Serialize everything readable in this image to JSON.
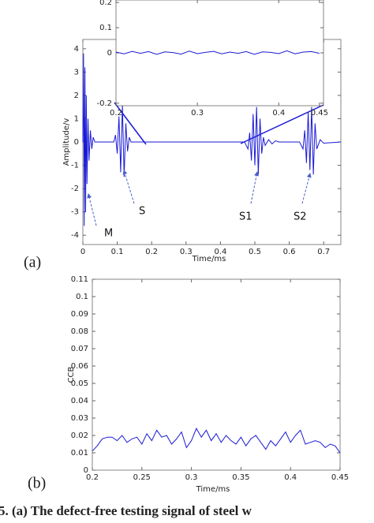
{
  "chart_data": [
    {
      "type": "line",
      "panel_label": "(a)",
      "x_label": "Time/ms",
      "y_label": "Amplitude/v",
      "color": "#1a1ad6",
      "xlim": [
        0,
        0.75
      ],
      "ylim": [
        -4.4,
        4.4
      ],
      "xticks": [
        0,
        0.1,
        0.2,
        0.3,
        0.4,
        0.5,
        0.6,
        0.7
      ],
      "yticks": [
        -4,
        -3,
        -2,
        -1,
        0,
        1,
        2,
        3,
        4
      ],
      "annotations": [
        "M",
        "S",
        "S1",
        "S2"
      ],
      "x": [
        0,
        0.002,
        0.004,
        0.006,
        0.008,
        0.01,
        0.012,
        0.015,
        0.018,
        0.022,
        0.026,
        0.03,
        0.035,
        0.09,
        0.095,
        0.1,
        0.105,
        0.11,
        0.115,
        0.12,
        0.125,
        0.13,
        0.135,
        0.14,
        0.47,
        0.48,
        0.485,
        0.49,
        0.495,
        0.5,
        0.505,
        0.51,
        0.515,
        0.52,
        0.525,
        0.53,
        0.54,
        0.55,
        0.56,
        0.57,
        0.63,
        0.64,
        0.645,
        0.65,
        0.655,
        0.66,
        0.665,
        0.67,
        0.675,
        0.68,
        0.69,
        0.7,
        0.75
      ],
      "values": [
        0,
        3.8,
        -3.6,
        3.2,
        -3,
        2,
        -1.8,
        1,
        -0.8,
        0.5,
        -0.3,
        0.2,
        0,
        0,
        0.3,
        -0.5,
        1.1,
        -1.3,
        1.6,
        -1.5,
        0.8,
        -0.4,
        0.2,
        0,
        0,
        -0.3,
        0.4,
        -0.8,
        1.2,
        -1,
        1.5,
        -1.4,
        1,
        -0.5,
        0.2,
        -0.15,
        0.1,
        -0.08,
        0.05,
        0,
        0,
        -0.3,
        0.5,
        -0.9,
        1.3,
        -1.2,
        1.5,
        -1.4,
        0.8,
        -0.3,
        0.1,
        -0.05,
        0
      ]
    },
    {
      "type": "line",
      "color": "#1a1ad6",
      "xlim": [
        0.2,
        0.455
      ],
      "ylim": [
        -0.21,
        0.21
      ],
      "xticks": [
        0.2,
        0.3,
        0.4,
        0.45
      ],
      "yticks": [
        -0.2,
        0,
        0.1,
        0.2
      ],
      "x": [
        0.2,
        0.21,
        0.22,
        0.23,
        0.24,
        0.25,
        0.26,
        0.27,
        0.28,
        0.29,
        0.3,
        0.31,
        0.32,
        0.33,
        0.34,
        0.35,
        0.36,
        0.37,
        0.38,
        0.39,
        0.4,
        0.41,
        0.42,
        0.43,
        0.44,
        0.45
      ],
      "values": [
        0.003,
        -0.004,
        0.006,
        -0.002,
        0.005,
        -0.006,
        0.004,
        0.001,
        -0.005,
        0.007,
        -0.003,
        0.002,
        0.006,
        -0.004,
        0.003,
        -0.002,
        0.005,
        -0.006,
        0.004,
        0.002,
        -0.003,
        0.008,
        -0.004,
        0.003,
        0.005,
        -0.002
      ]
    },
    {
      "type": "line",
      "panel_label": "(b)",
      "x_label": "Time/ms",
      "y_label": "CCB",
      "color": "#1a1ad6",
      "xlim": [
        0.2,
        0.45
      ],
      "ylim": [
        0,
        0.11
      ],
      "xticks": [
        0.2,
        0.25,
        0.3,
        0.35,
        0.4,
        0.45
      ],
      "yticks": [
        0,
        0.01,
        0.02,
        0.03,
        0.04,
        0.05,
        0.06,
        0.07,
        0.08,
        0.09,
        0.1,
        0.11
      ],
      "x": [
        0.2,
        0.205,
        0.21,
        0.215,
        0.22,
        0.225,
        0.23,
        0.235,
        0.24,
        0.245,
        0.25,
        0.255,
        0.26,
        0.265,
        0.27,
        0.275,
        0.28,
        0.285,
        0.29,
        0.295,
        0.3,
        0.305,
        0.31,
        0.315,
        0.32,
        0.325,
        0.33,
        0.335,
        0.34,
        0.345,
        0.35,
        0.355,
        0.36,
        0.365,
        0.37,
        0.375,
        0.38,
        0.385,
        0.39,
        0.395,
        0.4,
        0.405,
        0.41,
        0.415,
        0.42,
        0.425,
        0.43,
        0.435,
        0.44,
        0.445,
        0.45
      ],
      "values": [
        0.011,
        0.014,
        0.018,
        0.019,
        0.019,
        0.017,
        0.02,
        0.016,
        0.018,
        0.019,
        0.015,
        0.021,
        0.017,
        0.023,
        0.019,
        0.02,
        0.015,
        0.018,
        0.022,
        0.013,
        0.017,
        0.024,
        0.019,
        0.023,
        0.017,
        0.021,
        0.016,
        0.02,
        0.017,
        0.015,
        0.019,
        0.014,
        0.018,
        0.02,
        0.016,
        0.012,
        0.017,
        0.014,
        0.018,
        0.022,
        0.016,
        0.02,
        0.023,
        0.015,
        0.016,
        0.017,
        0.016,
        0.013,
        0.015,
        0.014,
        0.01
      ]
    }
  ],
  "caption": "5. (a) The defect-free testing signal of steel w"
}
